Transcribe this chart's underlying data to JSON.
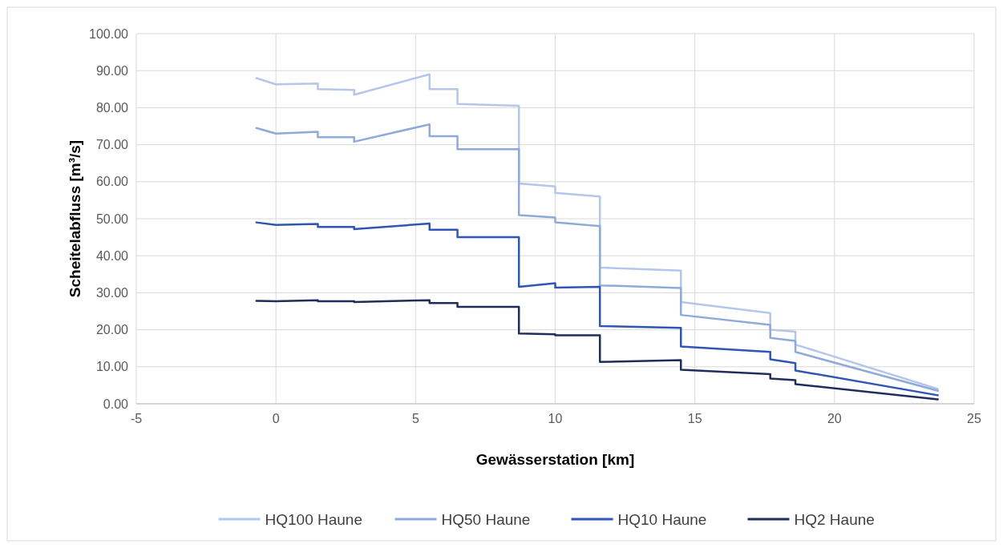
{
  "chart_data": {
    "type": "line",
    "xlabel": "Gewässerstation [km]",
    "ylabel": "Scheitelabfluss [m³/s]",
    "x": [
      -0.7,
      0,
      1.5,
      1.5,
      2.8,
      2.8,
      5.5,
      5.5,
      6.5,
      6.5,
      8.7,
      8.7,
      10,
      10,
      11.6,
      11.6,
      14.5,
      14.5,
      17.7,
      17.7,
      18.6,
      18.6,
      23.7
    ],
    "series": [
      {
        "name": "HQ100 Haune",
        "color": "#b4c6ea",
        "values": [
          88,
          86.3,
          86.5,
          85,
          84.8,
          83.5,
          89,
          85,
          85,
          81,
          80.5,
          59.5,
          58.7,
          57,
          56,
          36.8,
          36,
          27.5,
          24.5,
          20,
          19.5,
          16,
          4
        ]
      },
      {
        "name": "HQ50 Haune",
        "color": "#8eaadb",
        "values": [
          74.5,
          73,
          73.5,
          72,
          72,
          70.8,
          75.5,
          72.3,
          72.3,
          68.8,
          68.8,
          51,
          50.3,
          49,
          48,
          32,
          31.3,
          24,
          21.3,
          17.8,
          17,
          14,
          3.5
        ]
      },
      {
        "name": "HQ10 Haune",
        "color": "#2f55b5",
        "values": [
          49,
          48.3,
          48.6,
          47.8,
          47.8,
          47.2,
          48.7,
          47,
          47,
          45,
          45,
          31.6,
          32.6,
          31.4,
          31.6,
          21,
          20.5,
          15.5,
          14,
          12,
          11,
          9,
          2.3
        ]
      },
      {
        "name": "HQ2 Haune",
        "color": "#1f2d5c",
        "values": [
          27.8,
          27.7,
          28,
          27.7,
          27.7,
          27.5,
          28,
          27.2,
          27.2,
          26.2,
          26.2,
          19,
          18.8,
          18.5,
          18.5,
          11.3,
          11.8,
          9.2,
          8,
          6.8,
          6.4,
          5.3,
          1.2
        ]
      }
    ],
    "xlim": [
      -5,
      25
    ],
    "xticks": [
      -5,
      0,
      5,
      10,
      15,
      20,
      25
    ],
    "ylim": [
      0,
      100
    ],
    "yticks": [
      {
        "value": 0,
        "label": "0.00"
      },
      {
        "value": 10,
        "label": "10.00"
      },
      {
        "value": 20,
        "label": "20.00"
      },
      {
        "value": 30,
        "label": "30.00"
      },
      {
        "value": 40,
        "label": "40.00"
      },
      {
        "value": 50,
        "label": "50.00"
      },
      {
        "value": 60,
        "label": "60.00"
      },
      {
        "value": 70,
        "label": "70.00"
      },
      {
        "value": 80,
        "label": "80.00"
      },
      {
        "value": 90,
        "label": "90.00"
      },
      {
        "value": 100,
        "label": "100.00"
      }
    ],
    "grid": true,
    "legend": "bottom",
    "marker": "none",
    "line_style": "solid"
  }
}
